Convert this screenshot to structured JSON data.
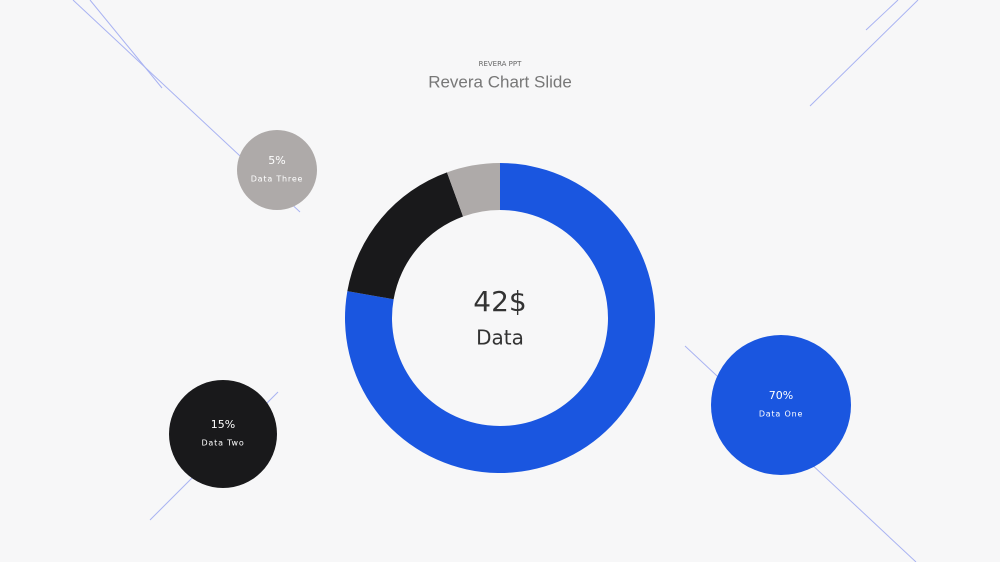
{
  "chart_data": {
    "type": "donut",
    "subtitle": "REVERA PPT",
    "title": "Revera Chart Slide",
    "center_value": "42$",
    "center_label": "Data",
    "categories": [
      "Data One",
      "Data Two",
      "Data Three"
    ],
    "values": [
      70,
      15,
      5
    ],
    "value_labels": [
      "70%",
      "15%",
      "5%"
    ],
    "colors": [
      "#1a56e0",
      "#19191b",
      "#aeaaa9"
    ]
  }
}
